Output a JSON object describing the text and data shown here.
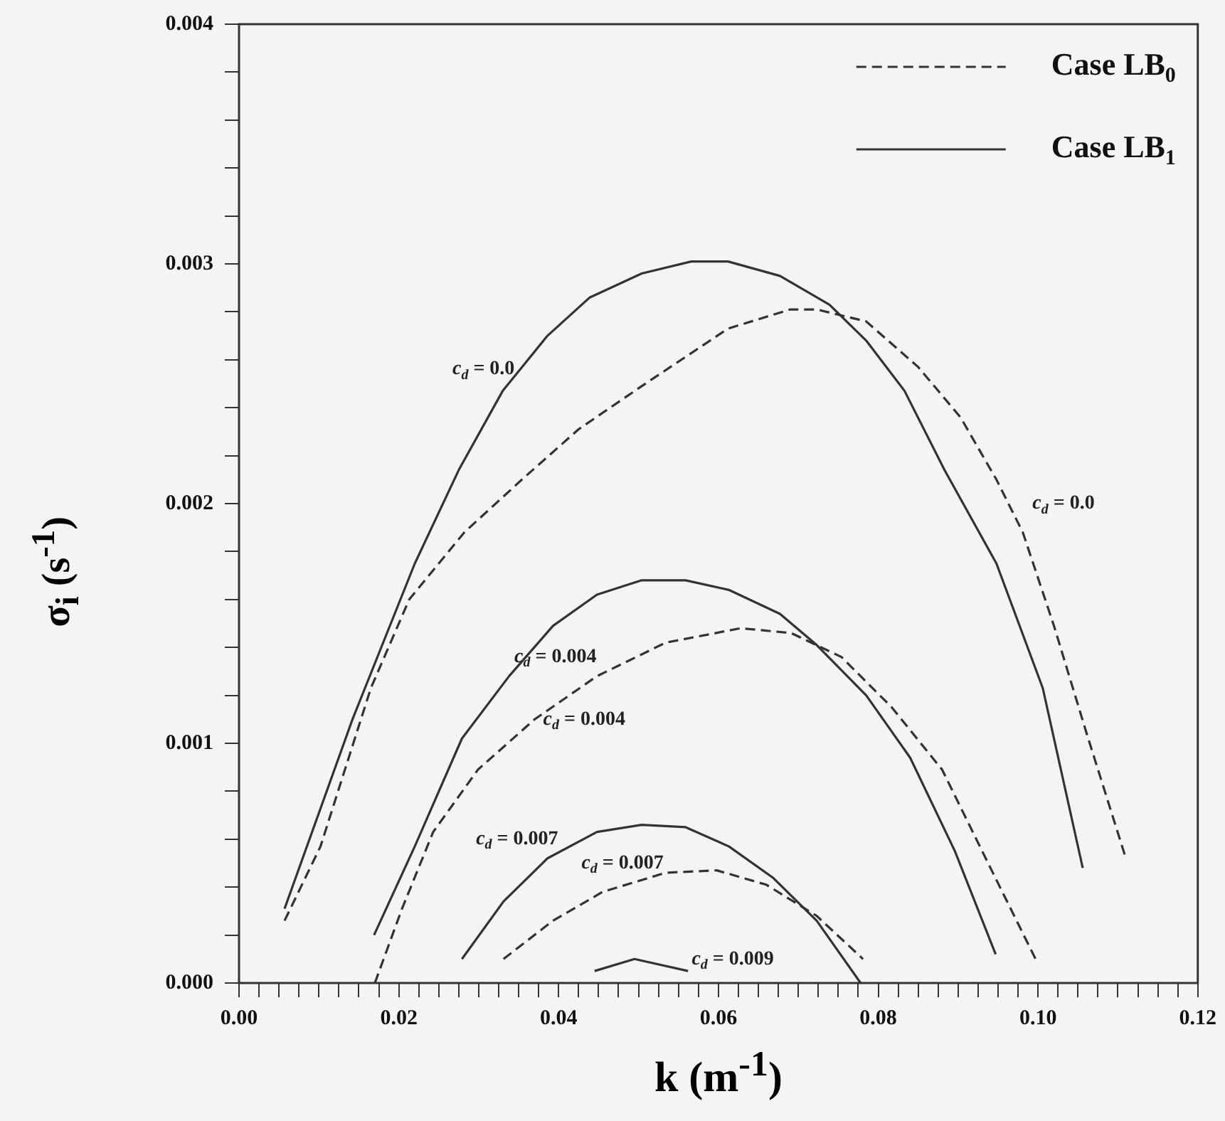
{
  "chart_data": {
    "type": "line",
    "xlabel": "k  (m$^{-1}$)",
    "ylabel": "σ$_{i}$ (s$^{-1}$)",
    "series": [
      {
        "name": "Case LB$_{0}$",
        "color": "#333333",
        "line_style": "dashed",
        "x": [
          0.0057,
          0.0102,
          0.0165,
          0.0213,
          0.0282,
          0.0354,
          0.0425,
          0.0504,
          0.0612,
          0.069,
          0.0723,
          0.0785,
          0.085,
          0.0903,
          0.0948,
          0.0981,
          0.102,
          0.1061,
          0.111
        ],
        "values": [
          0.00026,
          0.00057,
          0.00123,
          0.0016,
          0.00188,
          0.0021,
          0.00231,
          0.00249,
          0.00273,
          0.00281,
          0.00281,
          0.00276,
          0.00257,
          0.00236,
          0.0021,
          0.00188,
          0.00149,
          0.00104,
          0.00052
        ]
      },
      {
        "color": "#333333",
        "line_style": "dashed",
        "x": [
          0.017,
          0.0204,
          0.0243,
          0.0299,
          0.037,
          0.0448,
          0.0534,
          0.0628,
          0.0691,
          0.0754,
          0.0817,
          0.088,
          0.0942,
          0.0997
        ],
        "values": [
          0,
          0.00031,
          0.00063,
          0.00089,
          0.0011,
          0.00128,
          0.00142,
          0.00148,
          0.00146,
          0.00136,
          0.00115,
          0.00089,
          0.00047,
          0.0001
        ]
      },
      {
        "color": "#333333",
        "line_style": "dashed",
        "x": [
          0.0331,
          0.0393,
          0.0455,
          0.0534,
          0.0598,
          0.066,
          0.0723,
          0.0781
        ],
        "values": [
          0.0001,
          0.00026,
          0.00038,
          0.00046,
          0.00047,
          0.00041,
          0.00028,
          0.0001
        ]
      },
      {
        "name": "Case LB$_{1}$",
        "color": "#333333",
        "line_style": "solid",
        "x": [
          0.0057,
          0.0142,
          0.022,
          0.0275,
          0.033,
          0.0386,
          0.0439,
          0.0504,
          0.0566,
          0.0612,
          0.0677,
          0.0739,
          0.0785,
          0.0833,
          0.0883,
          0.0948,
          0.1006,
          0.1056
        ],
        "values": [
          0.00031,
          0.0011,
          0.00175,
          0.00214,
          0.00247,
          0.0027,
          0.00286,
          0.00296,
          0.00301,
          0.00301,
          0.00295,
          0.00283,
          0.00268,
          0.00247,
          0.00214,
          0.00175,
          0.00123,
          0.00048
        ]
      },
      {
        "color": "#333333",
        "line_style": "solid",
        "x": [
          0.0169,
          0.022,
          0.0279,
          0.0338,
          0.0393,
          0.0448,
          0.0504,
          0.0559,
          0.0613,
          0.0677,
          0.0723,
          0.0785,
          0.084,
          0.0896,
          0.0947
        ],
        "values": [
          0.0002,
          0.00057,
          0.00102,
          0.00128,
          0.00149,
          0.00162,
          0.00168,
          0.00168,
          0.00164,
          0.00154,
          0.00141,
          0.0012,
          0.00094,
          0.00055,
          0.00012
        ]
      },
      {
        "color": "#333333",
        "line_style": "solid",
        "x": [
          0.0279,
          0.0331,
          0.0386,
          0.0448,
          0.0504,
          0.0559,
          0.0613,
          0.0668,
          0.0723,
          0.0778
        ],
        "values": [
          0.0001,
          0.00034,
          0.00052,
          0.00063,
          0.00066,
          0.00065,
          0.00057,
          0.00044,
          0.00026,
          0
        ]
      },
      {
        "color": "#333333",
        "line_style": "solid",
        "x": [
          0.0445,
          0.0495,
          0.0562
        ],
        "values": [
          5e-05,
          0.0001,
          5e-05
        ]
      }
    ],
    "xlim": [
      0,
      0.12
    ],
    "xticks": [
      {
        "value": 0,
        "label": "0.00"
      },
      {
        "value": 0.0025,
        "label": null
      },
      {
        "value": 0.005,
        "label": null
      },
      {
        "value": 0.0075,
        "label": null
      },
      {
        "value": 0.01,
        "label": null
      },
      {
        "value": 0.0125,
        "label": null
      },
      {
        "value": 0.015,
        "label": null
      },
      {
        "value": 0.0175,
        "label": null
      },
      {
        "value": 0.02,
        "label": "0.02"
      },
      {
        "value": 0.0225,
        "label": null
      },
      {
        "value": 0.025,
        "label": null
      },
      {
        "value": 0.0275,
        "label": null
      },
      {
        "value": 0.03,
        "label": null
      },
      {
        "value": 0.0325,
        "label": null
      },
      {
        "value": 0.035,
        "label": null
      },
      {
        "value": 0.0375,
        "label": null
      },
      {
        "value": 0.04,
        "label": "0.04"
      },
      {
        "value": 0.0425,
        "label": null
      },
      {
        "value": 0.045,
        "label": null
      },
      {
        "value": 0.0475,
        "label": null
      },
      {
        "value": 0.05,
        "label": null
      },
      {
        "value": 0.0525,
        "label": null
      },
      {
        "value": 0.055,
        "label": null
      },
      {
        "value": 0.0575,
        "label": null
      },
      {
        "value": 0.06,
        "label": "0.06"
      },
      {
        "value": 0.0625,
        "label": null
      },
      {
        "value": 0.065,
        "label": null
      },
      {
        "value": 0.0675,
        "label": null
      },
      {
        "value": 0.07,
        "label": null
      },
      {
        "value": 0.0725,
        "label": null
      },
      {
        "value": 0.075,
        "label": null
      },
      {
        "value": 0.0775,
        "label": null
      },
      {
        "value": 0.08,
        "label": "0.08"
      },
      {
        "value": 0.0825,
        "label": null
      },
      {
        "value": 0.085,
        "label": null
      },
      {
        "value": 0.0875,
        "label": null
      },
      {
        "value": 0.09,
        "label": null
      },
      {
        "value": 0.0925,
        "label": null
      },
      {
        "value": 0.095,
        "label": null
      },
      {
        "value": 0.0975,
        "label": null
      },
      {
        "value": 0.1,
        "label": "0.10"
      },
      {
        "value": 0.1025,
        "label": null
      },
      {
        "value": 0.105,
        "label": null
      },
      {
        "value": 0.1075,
        "label": null
      },
      {
        "value": 0.11,
        "label": null
      },
      {
        "value": 0.1125,
        "label": null
      },
      {
        "value": 0.115,
        "label": null
      },
      {
        "value": 0.1175,
        "label": null
      },
      {
        "value": 0.12,
        "label": "0.12"
      }
    ],
    "ylim": [
      0,
      0.004
    ],
    "yticks": [
      {
        "value": 0,
        "label": "0.000"
      },
      {
        "value": 0.0002,
        "label": null
      },
      {
        "value": 0.0004,
        "label": null
      },
      {
        "value": 0.0006,
        "label": null
      },
      {
        "value": 0.0008,
        "label": null
      },
      {
        "value": 0.001,
        "label": "0.001"
      },
      {
        "value": 0.0012,
        "label": null
      },
      {
        "value": 0.0014,
        "label": null
      },
      {
        "value": 0.0016,
        "label": null
      },
      {
        "value": 0.0018,
        "label": null
      },
      {
        "value": 0.002,
        "label": "0.002"
      },
      {
        "value": 0.0022,
        "label": null
      },
      {
        "value": 0.0024,
        "label": null
      },
      {
        "value": 0.0026,
        "label": null
      },
      {
        "value": 0.0028,
        "label": null
      },
      {
        "value": 0.003,
        "label": "0.003"
      },
      {
        "value": 0.0032,
        "label": null
      },
      {
        "value": 0.0034,
        "label": null
      },
      {
        "value": 0.0036,
        "label": null
      },
      {
        "value": 0.0038,
        "label": null
      },
      {
        "value": 0.004,
        "label": "0.004"
      }
    ],
    "grid": false,
    "legend": "top right",
    "marker": "none",
    "annotations": [
      "c$_{d}$ = 0.0",
      "c$_{d}$ = 0.0",
      "c$_{d}$ = 0.004",
      "c$_{d}$ = 0.004",
      "c$_{d}$ = 0.007",
      "c$_{d}$ = 0.007",
      "c$_{d}$ = 0.009"
    ]
  }
}
